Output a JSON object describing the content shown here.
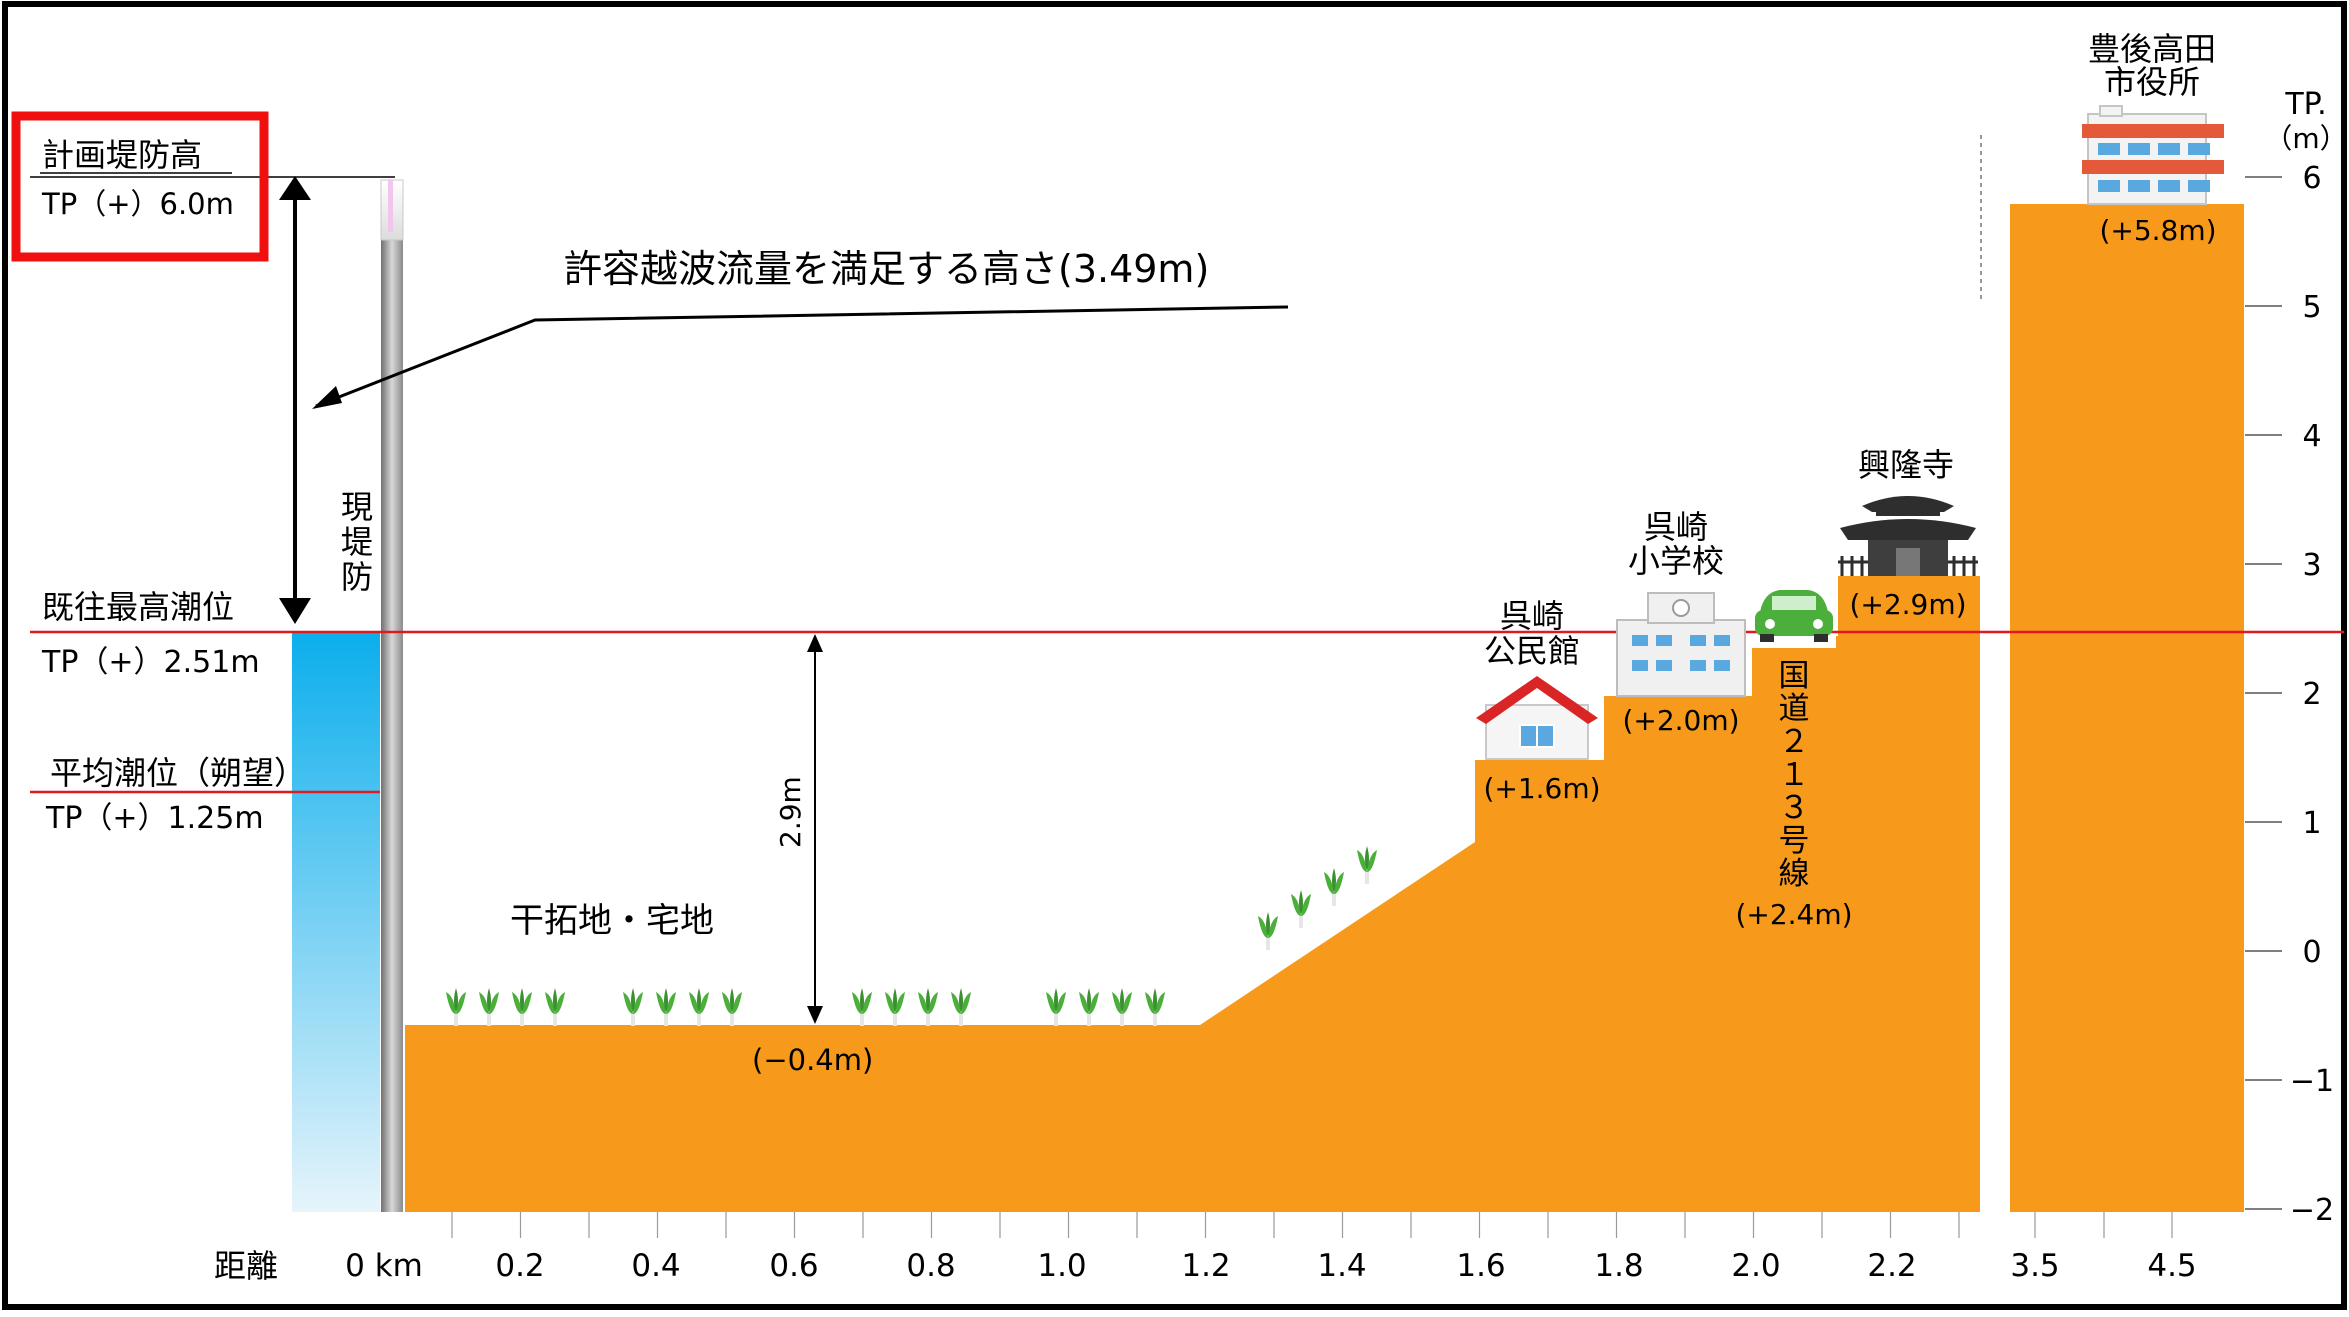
{
  "annotations": {
    "planned_levee_title": "計画堤防高",
    "planned_levee_value": "TP（+）6.0m",
    "overtopping_label": "許容越波流量を満足する高さ(3.49m)",
    "existing_levee": "現堤防",
    "max_tide_title": "既往最高潮位",
    "max_tide_value": "TP（+）2.51m",
    "mean_tide_title": "平均潮位（朔望）",
    "mean_tide_value": "TP（+）1.25m",
    "height_diff": "2.9m",
    "reclaimed_land": "干拓地・宅地",
    "reclaimed_elev": "(−0.4m)"
  },
  "landmarks": {
    "community_hall_line1": "呉崎",
    "community_hall_line2": "公民館",
    "community_hall_elev": "(+1.6m)",
    "school_line1": "呉崎",
    "school_line2": "小学校",
    "school_elev": "(+2.0m)",
    "road_label": "国道２１３号線",
    "road_elev": "(+2.4m)",
    "temple": "興隆寺",
    "temple_elev": "(+2.9m)",
    "city_hall_line1": "豊後高田",
    "city_hall_line2": "市役所",
    "city_hall_elev": "(+5.8m)"
  },
  "axis": {
    "unit_line1": "TP.",
    "unit_line2": "（m）",
    "y_ticks": [
      "6",
      "5",
      "4",
      "3",
      "2",
      "1",
      "0",
      "−1",
      "−2"
    ],
    "x_title": "距離",
    "x_ticks": [
      "0 km",
      "0.2",
      "0.4",
      "0.6",
      "0.8",
      "1.0",
      "1.2",
      "1.4",
      "1.6",
      "1.8",
      "2.0",
      "2.2",
      "3.5",
      "4.5"
    ]
  },
  "colors": {
    "land": "#F7991B",
    "sea_top": "#0BAEEC",
    "sea_bottom": "#E6F4FB",
    "tide_line": "#E0191E",
    "highlight_box": "#F01010",
    "crop": "#4CAF3C"
  }
}
